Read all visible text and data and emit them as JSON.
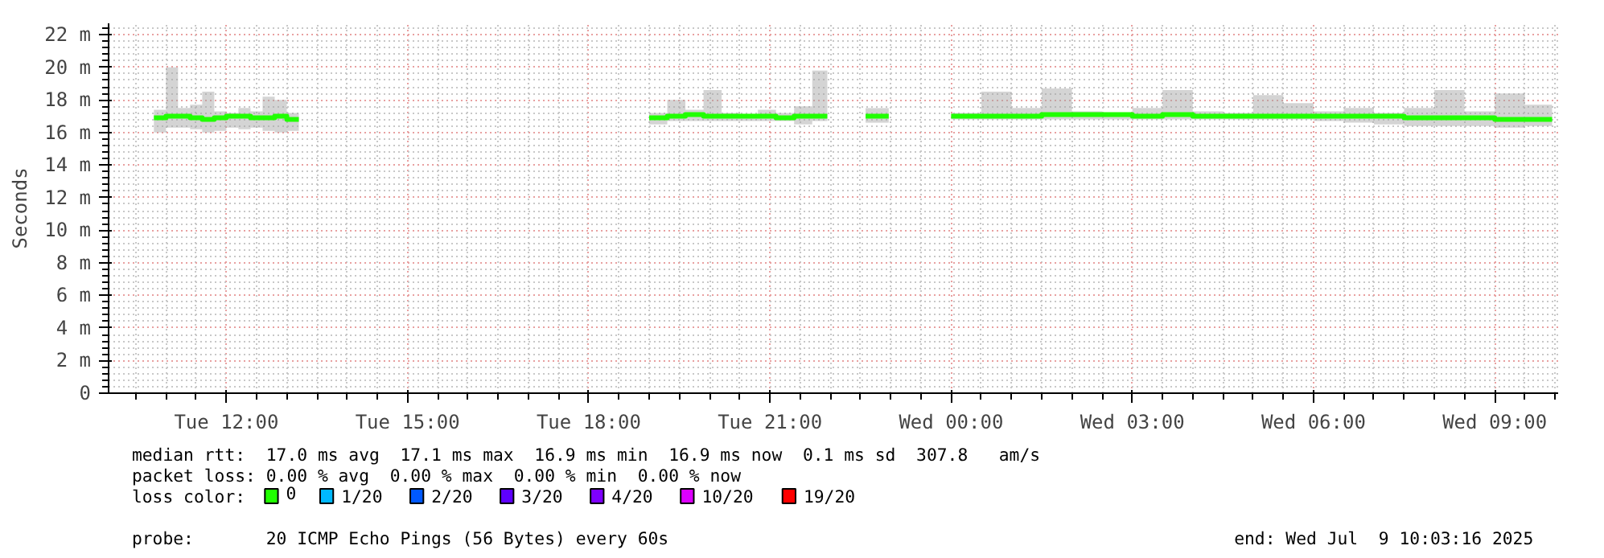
{
  "chart_data": {
    "type": "step",
    "ylabel": "Seconds",
    "x": [
      "2025-07-08T10:48",
      "2025-07-08T11:00",
      "2025-07-08T11:12",
      "2025-07-08T11:24",
      "2025-07-08T11:36",
      "2025-07-08T11:48",
      "2025-07-08T12:00",
      "2025-07-08T12:12",
      "2025-07-08T12:24",
      "2025-07-08T12:36",
      "2025-07-08T12:48",
      "2025-07-08T13:00",
      "2025-07-08T13:12",
      "2025-07-08T16:00",
      "2025-07-08T19:00",
      "2025-07-08T19:18",
      "2025-07-08T19:36",
      "2025-07-08T19:54",
      "2025-07-08T20:12",
      "2025-07-08T20:30",
      "2025-07-08T20:48",
      "2025-07-08T21:06",
      "2025-07-08T21:24",
      "2025-07-08T21:42",
      "2025-07-08T21:57",
      "2025-07-08T22:18",
      "2025-07-08T22:35",
      "2025-07-08T22:58",
      "2025-07-08T23:30",
      "2025-07-09T00:00",
      "2025-07-09T00:30",
      "2025-07-09T01:00",
      "2025-07-09T01:30",
      "2025-07-09T02:00",
      "2025-07-09T02:30",
      "2025-07-09T03:00",
      "2025-07-09T03:30",
      "2025-07-09T04:00",
      "2025-07-09T04:30",
      "2025-07-09T05:00",
      "2025-07-09T05:30",
      "2025-07-09T06:00",
      "2025-07-09T06:30",
      "2025-07-09T07:00",
      "2025-07-09T07:30",
      "2025-07-09T08:00",
      "2025-07-09T08:30",
      "2025-07-09T09:00",
      "2025-07-09T09:30",
      "2025-07-09T09:57"
    ],
    "series": [
      {
        "name": "0",
        "color": "#20ff00",
        "values": [
          16.9,
          17.0,
          17.0,
          16.9,
          16.8,
          16.9,
          17.0,
          17.0,
          16.9,
          16.9,
          17.0,
          16.8,
          16.8,
          null,
          16.9,
          17.0,
          17.1,
          17.0,
          17.0,
          17.0,
          17.0,
          16.9,
          17.0,
          17.0,
          17.0,
          null,
          17.0,
          17.0,
          null,
          17.0,
          17.0,
          17.0,
          17.1,
          17.1,
          17.1,
          17.0,
          17.1,
          17.0,
          17.0,
          17.0,
          17.0,
          17.0,
          17.0,
          17.0,
          16.9,
          16.9,
          16.9,
          16.8,
          16.8,
          16.8
        ],
        "upper": [
          17.4,
          20.0,
          17.5,
          17.7,
          18.5,
          17.3,
          17.2,
          17.5,
          17.3,
          18.2,
          18.0,
          17.2,
          17.2,
          null,
          17.2,
          18.0,
          17.4,
          18.6,
          17.2,
          17.1,
          17.4,
          17.2,
          17.6,
          19.8,
          19.8,
          null,
          17.5,
          17.5,
          null,
          17.2,
          18.5,
          17.5,
          18.7,
          17.3,
          17.2,
          17.5,
          18.6,
          17.3,
          17.2,
          18.3,
          17.8,
          17.3,
          17.5,
          17.2,
          17.5,
          18.6,
          17.3,
          18.4,
          17.7,
          17.4
        ],
        "lower": [
          16.0,
          16.3,
          16.3,
          16.2,
          16.0,
          16.1,
          16.3,
          16.2,
          16.3,
          16.1,
          16.0,
          16.1,
          16.1,
          null,
          16.5,
          16.7,
          16.7,
          16.7,
          16.7,
          16.7,
          16.7,
          16.7,
          16.5,
          16.7,
          16.7,
          null,
          16.6,
          16.6,
          null,
          16.8,
          16.8,
          16.8,
          16.8,
          16.8,
          16.8,
          16.8,
          16.8,
          16.8,
          16.8,
          16.8,
          16.8,
          16.7,
          16.6,
          16.5,
          16.4,
          16.4,
          16.4,
          16.3,
          16.4,
          16.4
        ]
      },
      {
        "name": "1/20",
        "color": "#00b8ff",
        "values": [
          null,
          null,
          null,
          null,
          null,
          null,
          null,
          null,
          null,
          null,
          null,
          null,
          null,
          null,
          null,
          null,
          null,
          null,
          null,
          null,
          null,
          null,
          null,
          null,
          null,
          null,
          null,
          null,
          null,
          null,
          null,
          null,
          null,
          null,
          null,
          null,
          null,
          null,
          null,
          null,
          null,
          null,
          null,
          null,
          null,
          null,
          null,
          null,
          null,
          null
        ]
      },
      {
        "name": "2/20",
        "color": "#0059ff",
        "values": [
          null,
          null,
          null,
          null,
          null,
          null,
          null,
          null,
          null,
          null,
          null,
          null,
          null,
          null,
          null,
          null,
          null,
          null,
          null,
          null,
          null,
          null,
          null,
          null,
          null,
          null,
          null,
          null,
          null,
          null,
          null,
          null,
          null,
          null,
          null,
          null,
          null,
          null,
          null,
          null,
          null,
          null,
          null,
          null,
          null,
          null,
          null,
          null,
          null,
          null
        ]
      },
      {
        "name": "3/20",
        "color": "#5e00ff",
        "values": [
          null,
          null,
          null,
          null,
          null,
          null,
          null,
          null,
          null,
          null,
          null,
          null,
          null,
          null,
          null,
          null,
          null,
          null,
          null,
          null,
          null,
          null,
          null,
          null,
          null,
          null,
          null,
          null,
          null,
          null,
          null,
          null,
          null,
          null,
          null,
          null,
          null,
          null,
          null,
          null,
          null,
          null,
          null,
          null,
          null,
          null,
          null,
          null,
          null,
          null
        ]
      },
      {
        "name": "4/20",
        "color": "#7e00ff",
        "values": [
          null,
          null,
          null,
          null,
          null,
          null,
          null,
          null,
          null,
          null,
          null,
          null,
          null,
          null,
          null,
          null,
          null,
          null,
          null,
          null,
          null,
          null,
          null,
          null,
          null,
          null,
          null,
          null,
          null,
          null,
          null,
          null,
          null,
          null,
          null,
          null,
          null,
          null,
          null,
          null,
          null,
          null,
          null,
          null,
          null,
          null,
          null,
          null,
          null,
          null
        ]
      },
      {
        "name": "10/20",
        "color": "#dd00ff",
        "values": [
          null,
          null,
          null,
          null,
          null,
          null,
          null,
          null,
          null,
          null,
          null,
          null,
          null,
          null,
          null,
          null,
          null,
          null,
          null,
          null,
          null,
          null,
          null,
          null,
          null,
          null,
          null,
          null,
          null,
          null,
          null,
          null,
          null,
          null,
          null,
          null,
          null,
          null,
          null,
          null,
          null,
          null,
          null,
          null,
          null,
          null,
          null,
          null,
          null,
          null
        ]
      },
      {
        "name": "19/20",
        "color": "#ff0000",
        "values": [
          null,
          null,
          null,
          null,
          null,
          null,
          null,
          null,
          null,
          null,
          null,
          null,
          null,
          null,
          null,
          null,
          null,
          null,
          null,
          null,
          null,
          null,
          null,
          null,
          null,
          null,
          null,
          null,
          null,
          null,
          null,
          null,
          null,
          null,
          null,
          null,
          null,
          null,
          null,
          null,
          null,
          null,
          null,
          null,
          null,
          null,
          null,
          null,
          null,
          null
        ]
      }
    ],
    "legend": "bottom",
    "legend_title": "loss color:",
    "xlim": [
      "2025-07-08T10:03",
      "2025-07-09T10:03"
    ],
    "xticks": [
      {
        "value": "2025-07-08T12:00",
        "label": "Tue 12:00"
      },
      {
        "value": "2025-07-08T15:00",
        "label": "Tue 15:00"
      },
      {
        "value": "2025-07-08T18:00",
        "label": "Tue 18:00"
      },
      {
        "value": "2025-07-08T21:00",
        "label": "Tue 21:00"
      },
      {
        "value": "2025-07-09T00:00",
        "label": "Wed 00:00"
      },
      {
        "value": "2025-07-09T03:00",
        "label": "Wed 03:00"
      },
      {
        "value": "2025-07-09T06:00",
        "label": "Wed 06:00"
      },
      {
        "value": "2025-07-09T09:00",
        "label": "Wed 09:00"
      }
    ],
    "ylim": [
      0,
      22.7
    ],
    "yticks": [
      0,
      {
        "value": 2,
        "label": "2 m"
      },
      {
        "value": 4,
        "label": "4 m"
      },
      {
        "value": 6,
        "label": "6 m"
      },
      {
        "value": 8,
        "label": "8 m"
      },
      {
        "value": 10,
        "label": "10 m"
      },
      {
        "value": 12,
        "label": "12 m"
      },
      {
        "value": 14,
        "label": "14 m"
      },
      {
        "value": 16,
        "label": "16 m"
      },
      {
        "value": 18,
        "label": "18 m"
      },
      {
        "value": 20,
        "label": "20 m"
      },
      {
        "value": 22,
        "label": "22 m"
      }
    ],
    "grid": true,
    "annotations": [
      "median rtt:  17.0 ms avg  17.1 ms max  16.9 ms min  16.9 ms now  0.1 ms sd  307.8   am/s",
      "packet loss: 0.00 % avg  0.00 % max  0.00 % min  0.00 % now",
      "probe:       20 ICMP Echo Pings (56 Bytes) every 60s",
      "end: Wed Jul  9 10:03:16 2025"
    ]
  }
}
